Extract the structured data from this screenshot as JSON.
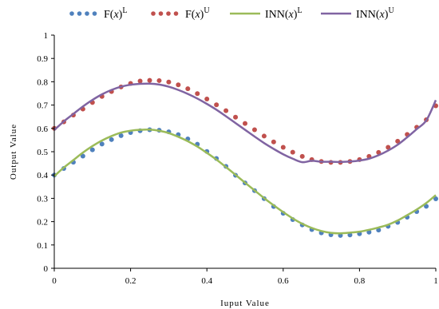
{
  "chart_data": {
    "type": "line",
    "xlabel": "Iuput Value",
    "ylabel": "Output Value",
    "xlim": [
      0,
      1
    ],
    "ylim": [
      0,
      1
    ],
    "x_ticks": [
      "0",
      "0.2",
      "0.4",
      "0.6",
      "0.8",
      "1"
    ],
    "y_ticks": [
      "0",
      "0.1",
      "0.2",
      "0.3",
      "0.4",
      "0.5",
      "0.6",
      "0.7",
      "0.8",
      "0.9",
      "1"
    ],
    "grid": false,
    "legend_position": "top",
    "series": [
      {
        "name_main": "F(",
        "name_var": "x",
        "name_close": ")",
        "name_sup": "L",
        "style": "dotted-markers",
        "color": "#4f81bd",
        "x": [
          0,
          0.025,
          0.05,
          0.075,
          0.1,
          0.125,
          0.15,
          0.175,
          0.2,
          0.225,
          0.25,
          0.275,
          0.3,
          0.325,
          0.35,
          0.375,
          0.4,
          0.425,
          0.45,
          0.475,
          0.5,
          0.525,
          0.55,
          0.575,
          0.6,
          0.625,
          0.65,
          0.675,
          0.7,
          0.725,
          0.75,
          0.775,
          0.8,
          0.825,
          0.85,
          0.875,
          0.9,
          0.925,
          0.95,
          0.975,
          1
        ],
        "y": [
          0.4,
          0.428,
          0.455,
          0.481,
          0.508,
          0.533,
          0.552,
          0.569,
          0.582,
          0.59,
          0.594,
          0.592,
          0.585,
          0.573,
          0.555,
          0.532,
          0.501,
          0.471,
          0.437,
          0.399,
          0.366,
          0.333,
          0.299,
          0.265,
          0.236,
          0.209,
          0.186,
          0.166,
          0.152,
          0.144,
          0.141,
          0.143,
          0.148,
          0.155,
          0.164,
          0.18,
          0.197,
          0.219,
          0.243,
          0.266,
          0.298
        ]
      },
      {
        "name_main": "F(",
        "name_var": "x",
        "name_close": ")",
        "name_sup": "U",
        "style": "dotted-markers",
        "color": "#c0504d",
        "x": [
          0,
          0.025,
          0.05,
          0.075,
          0.1,
          0.125,
          0.15,
          0.175,
          0.2,
          0.225,
          0.25,
          0.275,
          0.3,
          0.325,
          0.35,
          0.375,
          0.4,
          0.425,
          0.45,
          0.475,
          0.5,
          0.525,
          0.55,
          0.575,
          0.6,
          0.625,
          0.65,
          0.675,
          0.7,
          0.725,
          0.75,
          0.775,
          0.8,
          0.825,
          0.85,
          0.875,
          0.9,
          0.925,
          0.95,
          0.975,
          1
        ],
        "y": [
          0.6,
          0.628,
          0.657,
          0.683,
          0.711,
          0.737,
          0.758,
          0.778,
          0.793,
          0.803,
          0.806,
          0.805,
          0.799,
          0.787,
          0.77,
          0.749,
          0.726,
          0.701,
          0.676,
          0.648,
          0.621,
          0.594,
          0.567,
          0.542,
          0.519,
          0.498,
          0.48,
          0.466,
          0.458,
          0.454,
          0.454,
          0.458,
          0.466,
          0.48,
          0.497,
          0.519,
          0.545,
          0.574,
          0.605,
          0.637,
          0.697
        ]
      },
      {
        "name_main": "INN(",
        "name_var": "x",
        "name_close": ")",
        "name_sup": "L",
        "style": "solid-line",
        "color": "#9bbb59",
        "x": [
          0,
          0.025,
          0.05,
          0.075,
          0.1,
          0.125,
          0.15,
          0.175,
          0.2,
          0.225,
          0.25,
          0.275,
          0.3,
          0.325,
          0.35,
          0.375,
          0.4,
          0.425,
          0.45,
          0.475,
          0.5,
          0.525,
          0.55,
          0.575,
          0.6,
          0.625,
          0.65,
          0.675,
          0.7,
          0.725,
          0.75,
          0.775,
          0.8,
          0.825,
          0.85,
          0.875,
          0.9,
          0.925,
          0.95,
          0.975,
          1
        ],
        "y": [
          0.395,
          0.432,
          0.464,
          0.496,
          0.524,
          0.548,
          0.567,
          0.582,
          0.59,
          0.594,
          0.595,
          0.59,
          0.58,
          0.564,
          0.545,
          0.522,
          0.495,
          0.466,
          0.434,
          0.401,
          0.367,
          0.334,
          0.301,
          0.27,
          0.241,
          0.214,
          0.191,
          0.173,
          0.16,
          0.152,
          0.15,
          0.153,
          0.157,
          0.165,
          0.175,
          0.187,
          0.205,
          0.228,
          0.252,
          0.28,
          0.314
        ]
      },
      {
        "name_main": "INN(",
        "name_var": "x",
        "name_close": ")",
        "name_sup": "U",
        "style": "solid-line",
        "color": "#8064a2",
        "x": [
          0,
          0.025,
          0.05,
          0.075,
          0.1,
          0.125,
          0.15,
          0.175,
          0.2,
          0.225,
          0.25,
          0.275,
          0.3,
          0.325,
          0.35,
          0.375,
          0.4,
          0.425,
          0.45,
          0.475,
          0.5,
          0.525,
          0.55,
          0.575,
          0.6,
          0.625,
          0.65,
          0.675,
          0.7,
          0.725,
          0.75,
          0.775,
          0.8,
          0.825,
          0.85,
          0.875,
          0.9,
          0.925,
          0.95,
          0.975,
          1
        ],
        "y": [
          0.593,
          0.63,
          0.662,
          0.694,
          0.722,
          0.746,
          0.765,
          0.779,
          0.787,
          0.791,
          0.792,
          0.788,
          0.779,
          0.765,
          0.748,
          0.728,
          0.705,
          0.68,
          0.652,
          0.623,
          0.594,
          0.565,
          0.537,
          0.512,
          0.489,
          0.47,
          0.455,
          0.461,
          0.457,
          0.457,
          0.456,
          0.458,
          0.462,
          0.47,
          0.485,
          0.505,
          0.53,
          0.562,
          0.597,
          0.634,
          0.721
        ]
      }
    ]
  }
}
